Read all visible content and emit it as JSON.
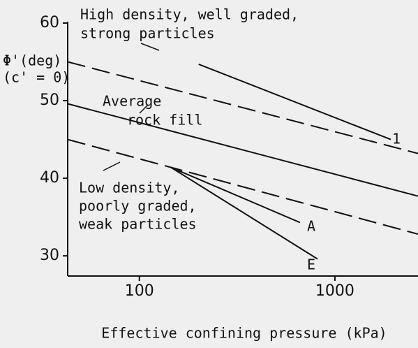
{
  "chart_data": {
    "type": "line",
    "y_label_lines": [
      "Φ'(deg)",
      "(c' = 0)"
    ],
    "x_label": "Effective confining pressure (kPa)",
    "xlog": true,
    "xlim": [
      43,
      2660
    ],
    "ylim": [
      27.4,
      60
    ],
    "xticks": [
      100,
      1000
    ],
    "yticks": [
      30,
      40,
      50,
      60
    ],
    "series": [
      {
        "color": "#111111",
        "dash": true,
        "x": [
          43,
          2660
        ],
        "values": [
          55.0,
          43.2
        ]
      },
      {
        "color": "#111111",
        "dash": false,
        "x": [
          201,
          1930
        ],
        "values": [
          54.7,
          45.0
        ]
      },
      {
        "color": "#111111",
        "dash": false,
        "x": [
          43,
          2660
        ],
        "values": [
          49.6,
          37.7
        ]
      },
      {
        "color": "#111111",
        "dash": true,
        "x": [
          43,
          2660
        ],
        "values": [
          45.0,
          32.8
        ]
      },
      {
        "color": "#111111",
        "dash": false,
        "x": [
          145,
          663
        ],
        "values": [
          41.4,
          34.3
        ]
      },
      {
        "color": "#111111",
        "dash": false,
        "x": [
          145,
          815
        ],
        "values": [
          41.4,
          29.6
        ]
      }
    ],
    "annotations": [
      {
        "lines": [
          "High density, well graded,",
          "strong particles"
        ]
      },
      {
        "lines": [
          "Average",
          "rock fill"
        ]
      },
      {
        "lines": [
          "Low density,",
          "poorly graded,",
          "weak particles"
        ]
      },
      {
        "lines": [
          "1"
        ]
      },
      {
        "lines": [
          "A"
        ]
      },
      {
        "lines": [
          "E"
        ]
      }
    ]
  }
}
